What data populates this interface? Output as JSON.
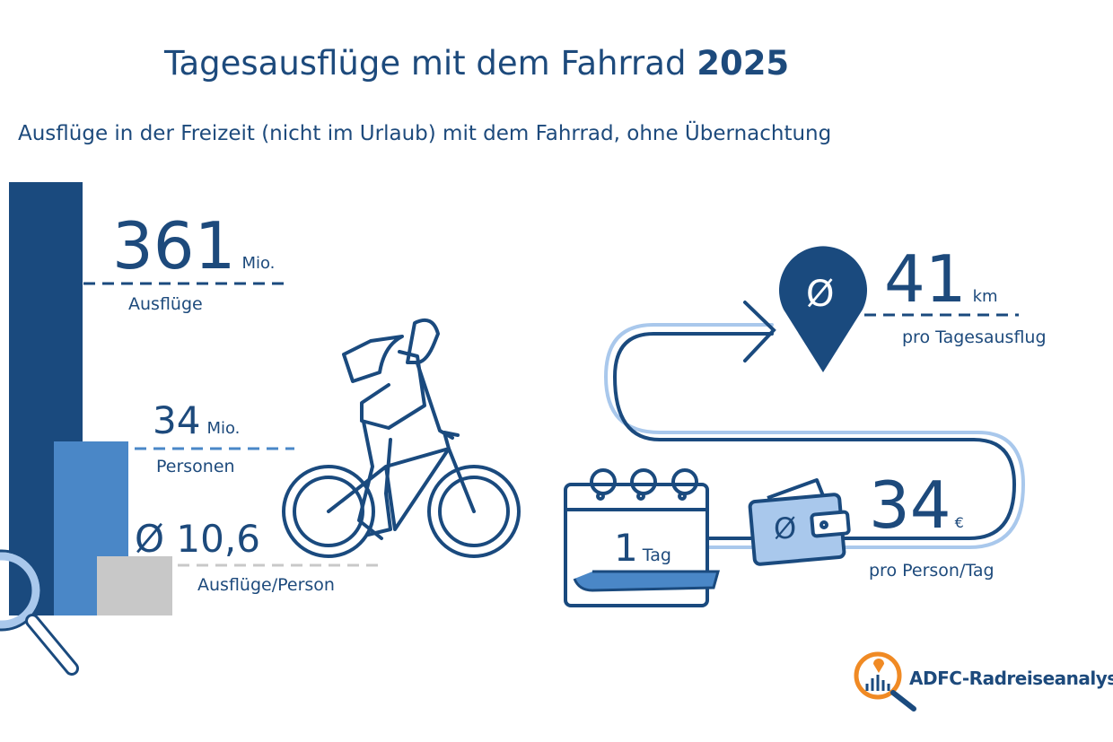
{
  "header": {
    "title": "Tagesausflüge mit dem Fahrrad",
    "title_year": "2025",
    "subtitle": "Ausflüge in der Freizeit (nicht im Urlaub) mit dem Fahrrad, ohne Übernachtung"
  },
  "stats": {
    "trips": {
      "value": "361",
      "unit": "Mio.",
      "label": "Ausflüge"
    },
    "persons": {
      "value": "34",
      "unit": "Mio.",
      "label": "Personen"
    },
    "per_person": {
      "value": "Ø 10,6",
      "label": "Ausflüge/Person"
    },
    "distance": {
      "value": "41",
      "unit": "km",
      "label": "pro Tagesausflug",
      "pin_symbol": "Ø"
    },
    "duration": {
      "value": "1",
      "unit": "Tag"
    },
    "spending": {
      "value": "34",
      "unit": "€",
      "label": "pro Person/Tag",
      "wallet_symbol": "Ø"
    }
  },
  "logo": {
    "text": "ADFC-Radreiseanalyse"
  },
  "colors": {
    "navy": "#1a4a7e",
    "mid_blue": "#4a87c7",
    "light_blue": "#a9c8ec",
    "gray": "#c8c8c8",
    "orange": "#f08a24"
  },
  "icons": [
    "magnifier-icon",
    "cyclist-icon",
    "map-pin-icon",
    "calendar-icon",
    "wallet-icon",
    "route-arrow-icon"
  ]
}
